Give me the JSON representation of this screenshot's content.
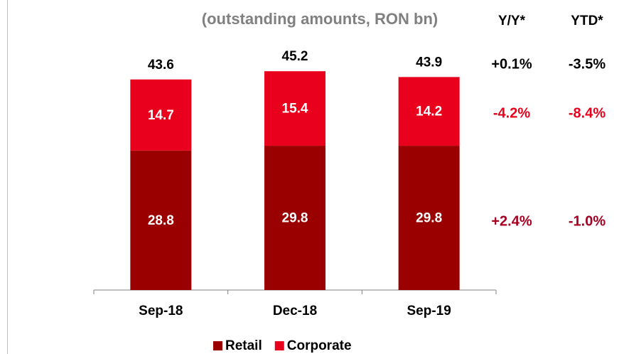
{
  "chart_data": {
    "type": "bar",
    "stacked": true,
    "title": "(outstanding amounts, RON bn)",
    "categories": [
      "Sep-18",
      "Dec-18",
      "Sep-19"
    ],
    "series": [
      {
        "name": "Retail",
        "color": "#9b0000",
        "values": [
          28.8,
          29.8,
          29.8
        ]
      },
      {
        "name": "Corporate",
        "color": "#e8001c",
        "values": [
          14.7,
          15.4,
          14.2
        ]
      }
    ],
    "totals": [
      43.6,
      45.2,
      43.9
    ],
    "ylim": [
      0,
      50
    ],
    "change_table": {
      "headers": [
        "Y/Y*",
        "YTD*"
      ],
      "rows": [
        {
          "color": "#000000",
          "cells": [
            "+0.1%",
            "-3.5%"
          ]
        },
        {
          "color": "#e8001c",
          "cells": [
            "-4.2%",
            "-8.4%"
          ]
        },
        {
          "color": "#a50021",
          "cells": [
            "+2.4%",
            "-1.0%"
          ]
        }
      ]
    }
  }
}
